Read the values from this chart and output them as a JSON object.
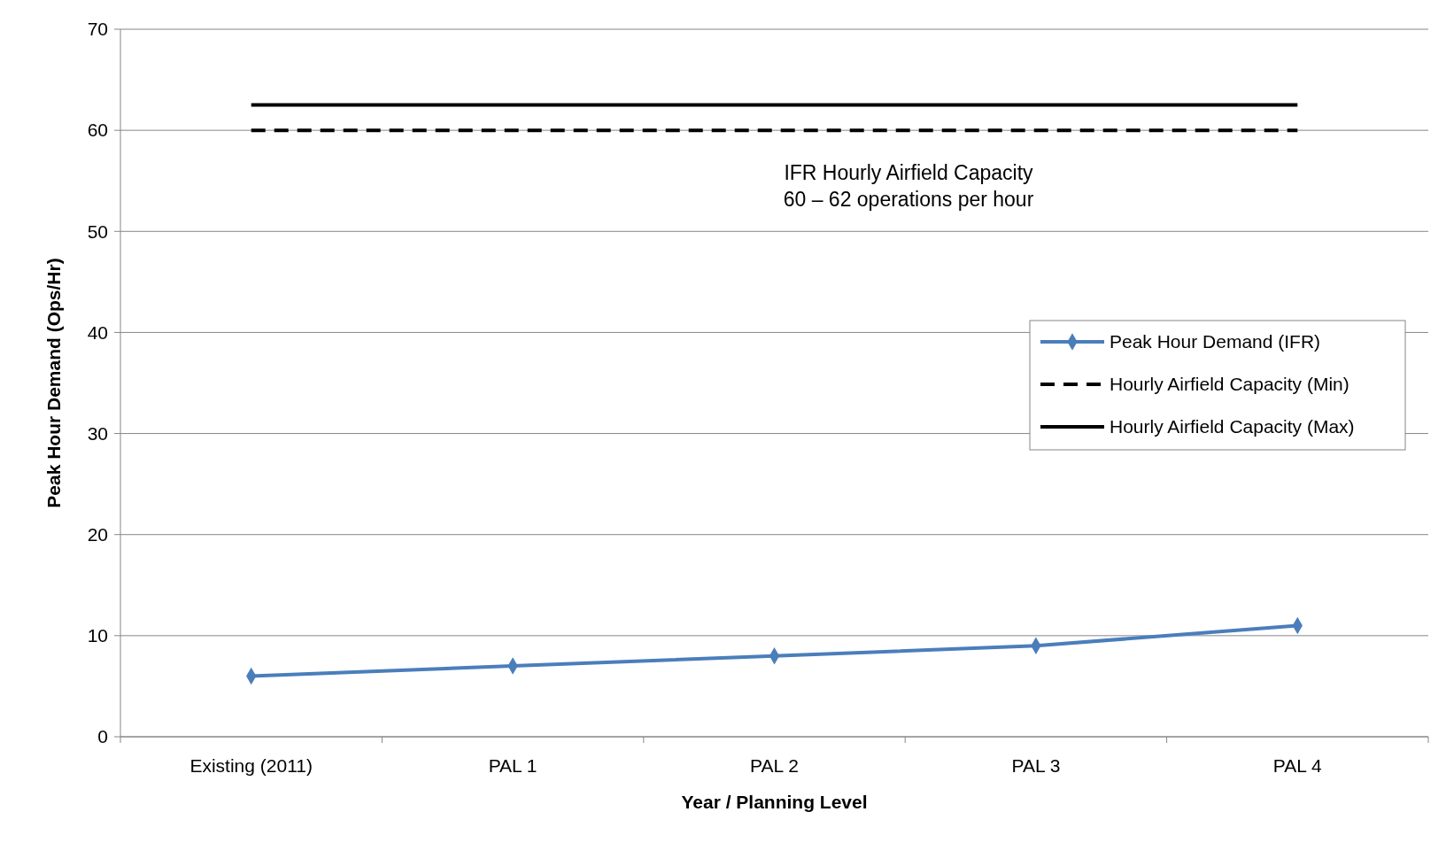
{
  "chart_data": {
    "type": "line",
    "xlabel": "Year / Planning Level",
    "ylabel": "Peak Hour Demand (Ops/Hr)",
    "categories": [
      "Existing (2011)",
      "PAL 1",
      "PAL 2",
      "PAL 3",
      "PAL 4"
    ],
    "series": [
      {
        "name": "Peak Hour Demand (IFR)",
        "color": "#4a7ebb",
        "values": [
          6,
          7,
          8,
          9,
          11
        ],
        "marker": "diamond",
        "line_style": "solid"
      },
      {
        "name": "Hourly Airfield Capacity (Min)",
        "color": "#000000",
        "values": [
          60,
          60,
          60,
          60,
          60
        ],
        "marker": "none",
        "line_style": "dashed"
      },
      {
        "name": "Hourly Airfield Capacity (Max)",
        "color": "#000000",
        "values": [
          62.5,
          62.5,
          62.5,
          62.5,
          62.5
        ],
        "marker": "none",
        "line_style": "solid"
      }
    ],
    "ylim": [
      0,
      70
    ],
    "yticks": [
      0,
      10,
      20,
      30,
      40,
      50,
      60,
      70
    ],
    "grid": "y",
    "legend": "right",
    "annotations": [
      "IFR Hourly Airfield Capacity\n60 – 62 operations per hour"
    ]
  }
}
